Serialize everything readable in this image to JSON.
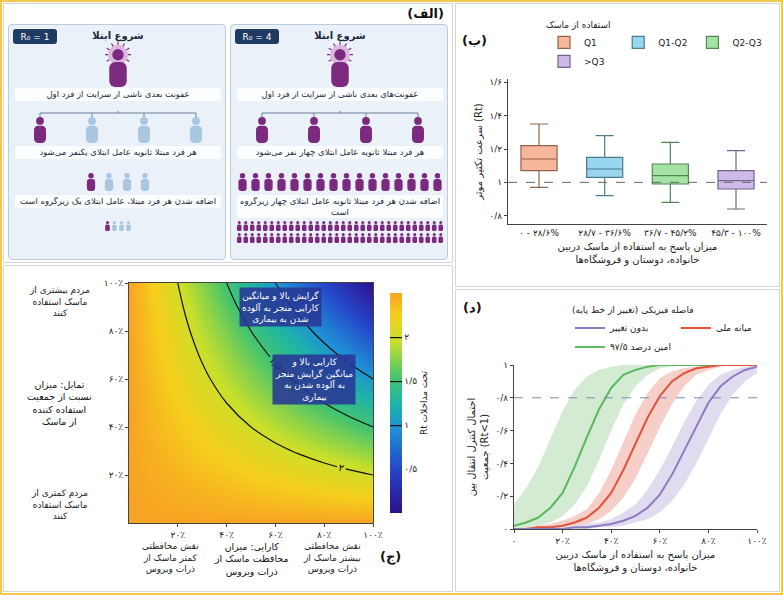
{
  "diagram": {
    "label": "(الف)",
    "panels": [
      {
        "r0": "R₀ = 1",
        "title": "شروع ابتلا",
        "steps": [
          "عفونت بعدی ناشی از سرایت از فرد اول",
          "هر فرد مبتلا ثانویه عامل ابتلای یکنفر می‌شود",
          "اضافه شدن هر فرد مبتلا، عامل ابتلای یک زیرگروه است"
        ],
        "rows": [
          {
            "count": 4,
            "infected": 1
          },
          {
            "count": 4,
            "infected": 1
          },
          {
            "count": 4,
            "infected": 1
          }
        ]
      },
      {
        "r0": "R₀ = 4",
        "title": "شروع ابتلا",
        "steps": [
          "عفونت‌های بعدی ناشی از سرایت از فرد اول",
          "هر فرد مبتلا ثانویه عامل ابتلای چهار نفر می‌شود",
          "اضافه شدن هر فرد مبتلا ثانویه عامل ابتلای چهار زیرگروه است"
        ],
        "rows": [
          {
            "count": 4,
            "infected": 4
          },
          {
            "count": 16,
            "infected": 16
          },
          {
            "count": 64,
            "infected": 64
          }
        ]
      }
    ]
  },
  "chart_data": [
    {
      "type": "box",
      "label": "(ب)",
      "ylabel": "سرعت تکثیر موثر (Rt)",
      "xlabel": "میزان پاسخ به استفاده از ماسک دربین خانواده، دوستان و فروشگاه‌ها",
      "legend_title": "استفاده از ماسک",
      "legend": "top",
      "categories": [
        "۰ - ۲۸/۶%",
        "۲۸/۷ - ۳۶/۶%",
        "۳۶/۷ - ۴۵/۲%",
        "۴۵/۳ - ۱۰۰%"
      ],
      "series": [
        {
          "name": "Q1",
          "color": "#f4a582",
          "q1": 1.07,
          "median": 1.14,
          "q3": 1.22,
          "whisker_low": 0.97,
          "whisker_high": 1.35
        },
        {
          "name": "Q1-Q2",
          "color": "#7fcdea",
          "q1": 1.03,
          "median": 1.08,
          "q3": 1.15,
          "whisker_low": 0.92,
          "whisker_high": 1.28
        },
        {
          "name": "Q2-Q3",
          "color": "#8edc8e",
          "q1": 0.99,
          "median": 1.04,
          "q3": 1.11,
          "whisker_low": 0.88,
          "whisker_high": 1.24
        },
        {
          "name": ">Q3",
          "color": "#c2a9e3",
          "q1": 0.96,
          "median": 1.01,
          "q3": 1.07,
          "whisker_low": 0.84,
          "whisker_high": 1.19
        }
      ],
      "hline": 1,
      "ylim": [
        0.75,
        1.62
      ],
      "yticks": [
        {
          "value": 0.8,
          "label": "۰/۸"
        },
        {
          "value": 1,
          "label": "۱"
        },
        {
          "value": 1.2,
          "label": "۱/۲"
        },
        {
          "value": 1.4,
          "label": "۱/۴"
        },
        {
          "value": 1.6,
          "label": "۱/۶"
        }
      ]
    },
    {
      "type": "contour",
      "label": "(ج)",
      "xlabel": "کارایی: میزان محافظت ماسک از ذرات ویروس",
      "ylabel": "تمایل: میزان نسبت از جمعیت استفاده کننده از ماسک",
      "notes": {
        "y_high": "مردم بیشتری از ماسک استفاده کنند",
        "y_low": "مردم کمتری از ماسک استفاده کنند",
        "x_low": "نقش محافظتی کمتر ماسک از ذرات ویروس",
        "x_high": "نقش محافظتی بیشتر ماسک از ذرات ویروس"
      },
      "annotations": [
        {
          "text": "گرایش بالا و میانگین کارایی منجر به آلوده شدن به بیماری",
          "x": 62,
          "y": 90
        },
        {
          "text": "کارایی بالا و میانگین گرایش منجر به آلوده شدن به بیماری",
          "x": 76,
          "y": 60
        }
      ],
      "x": [
        0,
        10,
        20,
        30,
        40,
        50,
        60,
        70,
        80,
        90,
        100
      ],
      "y": [
        0,
        10,
        20,
        30,
        40,
        50,
        60,
        70,
        80,
        90,
        100
      ],
      "z": [
        [
          2.5,
          2.5,
          2.5,
          2.5,
          2.5,
          2.5,
          2.5,
          2.5,
          2.5,
          2.5,
          2.5
        ],
        [
          2.5,
          2.475,
          2.45,
          2.425,
          2.4,
          2.375,
          2.35,
          2.325,
          2.3,
          2.275,
          2.25
        ],
        [
          2.5,
          2.45,
          2.4,
          2.35,
          2.3,
          2.25,
          2.2,
          2.15,
          2.1,
          2.05,
          2.0
        ],
        [
          2.5,
          2.425,
          2.35,
          2.275,
          2.2,
          2.125,
          2.05,
          1.975,
          1.9,
          1.825,
          1.75
        ],
        [
          2.5,
          2.4,
          2.3,
          2.2,
          2.1,
          2.0,
          1.9,
          1.8,
          1.7,
          1.6,
          1.5
        ],
        [
          2.5,
          2.375,
          2.25,
          2.125,
          2.0,
          1.875,
          1.75,
          1.625,
          1.5,
          1.375,
          1.25
        ],
        [
          2.5,
          2.35,
          2.2,
          2.05,
          1.9,
          1.75,
          1.6,
          1.45,
          1.3,
          1.15,
          1.0
        ],
        [
          2.5,
          2.325,
          2.15,
          1.975,
          1.8,
          1.625,
          1.45,
          1.275,
          1.1,
          0.925,
          0.75
        ],
        [
          2.5,
          2.3,
          2.1,
          1.9,
          1.7,
          1.5,
          1.3,
          1.1,
          0.9,
          0.7,
          0.5
        ],
        [
          2.5,
          2.275,
          2.05,
          1.825,
          1.6,
          1.375,
          1.15,
          0.925,
          0.7,
          0.475,
          0.25
        ],
        [
          2.5,
          2.25,
          2.0,
          1.75,
          1.5,
          1.25,
          1.0,
          0.75,
          0.5,
          0.25,
          0.0
        ]
      ],
      "zlim": [
        0,
        2.5
      ],
      "contour_levels": [
        1,
        1.5,
        2
      ],
      "colorbar_title": "Rt تحت مداخلات",
      "colorbar_ticks": [
        {
          "value": 0.5,
          "label": "۰/۵"
        },
        {
          "value": 1,
          "label": "۱"
        },
        {
          "value": 1.5,
          "label": "۱/۵"
        },
        {
          "value": 2,
          "label": "۲"
        }
      ],
      "xlim": [
        0,
        100
      ],
      "ylim": [
        0,
        100
      ],
      "xticks": [
        {
          "value": 20,
          "label": "۲۰٪"
        },
        {
          "value": 40,
          "label": "۴۰٪"
        },
        {
          "value": 60,
          "label": "۶۰٪"
        },
        {
          "value": 80,
          "label": "۸۰٪"
        },
        {
          "value": 100,
          "label": "۱۰۰٪"
        }
      ],
      "yticks": [
        {
          "value": 20,
          "label": "۲۰٪"
        },
        {
          "value": 40,
          "label": "۴۰٪"
        },
        {
          "value": 60,
          "label": "۶۰٪"
        },
        {
          "value": 80,
          "label": "۸۰٪"
        },
        {
          "value": 100,
          "label": "۱۰۰٪"
        }
      ]
    },
    {
      "type": "line",
      "label": "(د)",
      "xlabel": "میزان پاسخ به استفاده از ماسک دربین خانواده، دوستان و فروشگاه‌ها",
      "ylabel": "احتمال کنترل انتقال بین جمعیت (Rt<1)",
      "legend_title": "فاصله فیزیکی (تغییر از خط پایه)",
      "legend": "top",
      "x": [
        0,
        5,
        10,
        15,
        20,
        25,
        30,
        35,
        40,
        45,
        50,
        55,
        60,
        65,
        70,
        75,
        80,
        85,
        90,
        95,
        100
      ],
      "series": [
        {
          "name": "۹۷/۵ امین درصد",
          "color": "#5cb85c",
          "values": [
            0.02,
            0.04,
            0.07,
            0.13,
            0.22,
            0.38,
            0.56,
            0.73,
            0.86,
            0.94,
            0.97,
            0.99,
            1,
            1,
            1,
            1,
            1,
            1,
            1,
            1,
            1
          ],
          "lower": [
            0,
            0.01,
            0.02,
            0.04,
            0.08,
            0.15,
            0.26,
            0.42,
            0.6,
            0.76,
            0.87,
            0.94,
            0.98,
            0.99,
            1,
            1,
            1,
            1,
            1,
            1,
            1
          ],
          "upper": [
            0.15,
            0.25,
            0.38,
            0.55,
            0.72,
            0.85,
            0.93,
            0.97,
            0.99,
            1,
            1,
            1,
            1,
            1,
            1,
            1,
            1,
            1,
            1,
            1,
            1
          ]
        },
        {
          "name": "میانه ملی",
          "color": "#e0533d",
          "values": [
            0,
            0,
            0.01,
            0.01,
            0.02,
            0.04,
            0.07,
            0.13,
            0.22,
            0.36,
            0.52,
            0.68,
            0.81,
            0.9,
            0.95,
            0.98,
            0.99,
            1,
            1,
            1,
            1
          ],
          "lower": [
            0,
            0,
            0,
            0,
            0.01,
            0.02,
            0.03,
            0.06,
            0.11,
            0.19,
            0.31,
            0.46,
            0.62,
            0.76,
            0.87,
            0.94,
            0.97,
            0.99,
            1,
            1,
            1
          ],
          "upper": [
            0,
            0.01,
            0.02,
            0.03,
            0.05,
            0.08,
            0.12,
            0.22,
            0.36,
            0.53,
            0.7,
            0.83,
            0.92,
            0.96,
            0.98,
            0.99,
            1,
            1,
            1,
            1,
            1
          ]
        },
        {
          "name": "بدون تغییر",
          "color": "#8e7cc3",
          "values": [
            0,
            0,
            0,
            0,
            0,
            0.01,
            0.01,
            0.02,
            0.03,
            0.05,
            0.08,
            0.13,
            0.21,
            0.33,
            0.48,
            0.63,
            0.77,
            0.87,
            0.93,
            0.97,
            0.99
          ],
          "lower": [
            0,
            0,
            0,
            0,
            0,
            0,
            0,
            0.01,
            0.01,
            0.02,
            0.04,
            0.06,
            0.1,
            0.17,
            0.27,
            0.4,
            0.55,
            0.7,
            0.82,
            0.9,
            0.95
          ],
          "upper": [
            0,
            0,
            0,
            0.01,
            0.01,
            0.02,
            0.03,
            0.04,
            0.06,
            0.1,
            0.15,
            0.24,
            0.36,
            0.5,
            0.65,
            0.78,
            0.88,
            0.94,
            0.97,
            0.99,
            1
          ]
        }
      ],
      "hline": 0.8,
      "xlim": [
        0,
        100
      ],
      "ylim": [
        0,
        1
      ],
      "xticks": [
        {
          "value": 0,
          "label": "۰"
        },
        {
          "value": 20,
          "label": "۲۰٪"
        },
        {
          "value": 40,
          "label": "۴۰٪"
        },
        {
          "value": 60,
          "label": "۶۰٪"
        },
        {
          "value": 80,
          "label": "۸۰٪"
        },
        {
          "value": 100,
          "label": "۱۰۰٪"
        }
      ],
      "yticks": [
        {
          "value": 0,
          "label": "۰"
        },
        {
          "value": 0.2,
          "label": "۰/۲"
        },
        {
          "value": 0.4,
          "label": "۰/۴"
        },
        {
          "value": 0.6,
          "label": "۰/۶"
        },
        {
          "value": 0.8,
          "label": "۰/۸"
        },
        {
          "value": 1,
          "label": "۱"
        }
      ]
    }
  ]
}
